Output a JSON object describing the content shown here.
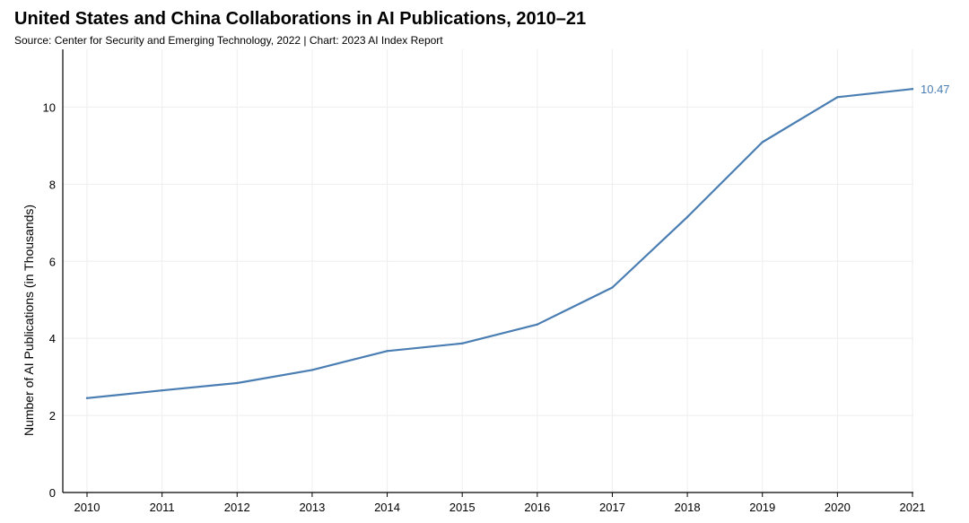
{
  "header": {
    "title": "United States and China Collaborations in AI Publications, 2010–21",
    "subtitle": "Source: Center for Security and Emerging Technology, 2022 | Chart: 2023 AI Index Report"
  },
  "colors": {
    "line": "#4a7eb3",
    "grid": "#eeeeee",
    "axis": "#000000"
  },
  "chart_data": {
    "type": "line",
    "title": "United States and China Collaborations in AI Publications, 2010–21",
    "xlabel": "",
    "ylabel": "Number of AI Publications (in Thousands)",
    "x": [
      "2010",
      "2011",
      "2012",
      "2013",
      "2014",
      "2015",
      "2016",
      "2017",
      "2018",
      "2019",
      "2020",
      "2021"
    ],
    "series": [
      {
        "values": [
          2.45,
          2.65,
          2.84,
          3.18,
          3.67,
          3.87,
          4.36,
          5.32,
          7.15,
          9.09,
          10.26,
          10.47
        ]
      }
    ],
    "end_label": "10.47",
    "yticks": [
      "0",
      "2",
      "4",
      "6",
      "8",
      "10"
    ],
    "ylim": [
      0,
      11.5
    ],
    "grid": true,
    "legend": "none"
  }
}
